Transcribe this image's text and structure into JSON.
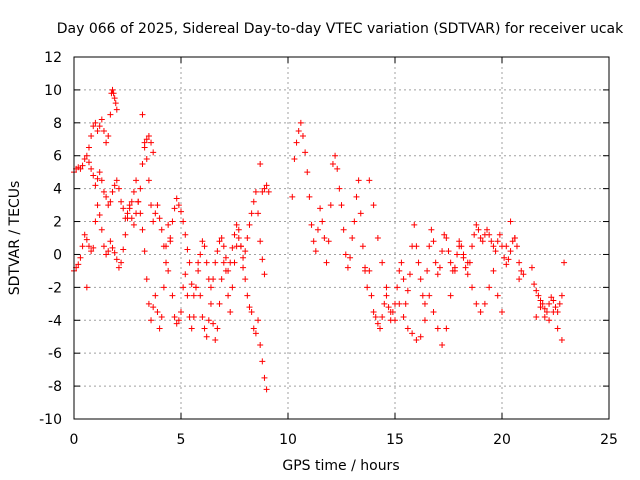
{
  "chart_data": {
    "type": "scatter",
    "title": "Day 066 of 2025, Sidereal Day-to-day VTEC variation (SDTVAR) for receiver ucak",
    "xlabel": "GPS time / hours",
    "ylabel": "SDTVAR / TECUs",
    "xlim": [
      0,
      25
    ],
    "ylim": [
      -10,
      12
    ],
    "xticks": [
      0,
      5,
      10,
      15,
      20,
      25
    ],
    "yticks": [
      -10,
      -8,
      -6,
      -4,
      -2,
      0,
      2,
      4,
      6,
      8,
      10,
      12
    ],
    "grid": true,
    "marker": "+",
    "color": "#ff0000",
    "series": [
      {
        "name": "SDTVAR",
        "x": [
          0.0,
          0.1,
          0.2,
          0.3,
          0.4,
          0.5,
          0.6,
          0.7,
          0.8,
          0.9,
          1.0,
          1.1,
          1.2,
          1.3,
          1.4,
          1.5,
          1.6,
          1.7,
          1.8,
          1.9,
          2.0,
          2.1,
          2.2,
          2.3,
          2.4,
          2.5,
          2.6,
          2.7,
          2.8,
          2.9,
          3.0,
          3.1,
          3.2,
          3.3,
          3.4,
          3.5,
          3.6,
          3.7,
          3.8,
          3.9,
          4.0,
          4.1,
          4.2,
          4.3,
          4.4,
          4.5,
          4.6,
          4.7,
          4.8,
          4.9,
          5.0,
          5.1,
          5.2,
          5.3,
          5.4,
          5.5,
          5.6,
          5.7,
          5.8,
          5.9,
          6.0,
          6.1,
          6.2,
          6.3,
          6.4,
          6.5,
          6.6,
          6.7,
          6.8,
          6.9,
          7.0,
          7.1,
          7.2,
          7.3,
          7.4,
          7.5,
          7.6,
          7.7,
          7.8,
          7.9,
          8.0,
          8.1,
          8.2,
          8.3,
          8.4,
          8.5,
          8.6,
          8.7,
          8.8,
          8.9,
          9.0,
          0.0,
          0.1,
          0.2,
          0.3,
          0.4,
          0.5,
          0.6,
          0.7,
          0.8,
          0.9,
          1.0,
          1.1,
          1.2,
          1.3,
          1.4,
          1.5,
          1.6,
          1.7,
          1.8,
          1.9,
          2.0,
          2.1,
          2.2,
          2.3,
          2.4,
          2.5,
          2.6,
          2.7,
          2.8,
          2.9,
          3.0,
          3.1,
          3.2,
          3.3,
          3.4,
          3.5,
          3.6,
          3.7,
          3.8,
          3.9,
          4.0,
          4.1,
          4.2,
          4.3,
          4.4,
          4.5,
          4.6,
          4.7,
          4.8,
          4.9,
          5.0,
          5.1,
          5.2,
          5.3,
          5.4,
          5.5,
          5.6,
          5.7,
          5.8,
          5.9,
          6.0,
          6.1,
          6.2,
          6.3,
          6.4,
          6.5,
          6.6,
          6.7,
          6.8,
          6.9,
          7.0,
          7.1,
          7.2,
          7.3,
          7.4,
          7.5,
          7.6,
          7.7,
          7.8,
          7.9,
          8.0,
          8.1,
          8.2,
          8.3,
          8.4,
          8.5,
          8.6,
          8.7,
          8.8,
          8.9,
          0.6,
          0.7,
          0.8,
          0.9,
          1.0,
          1.1,
          1.2,
          1.3,
          1.4,
          1.5,
          1.6,
          1.7,
          1.75,
          1.8,
          1.85,
          1.9,
          1.95,
          2.0,
          3.2,
          3.3,
          3.4,
          3.5,
          3.6,
          3.7,
          8.7,
          8.8,
          8.9,
          9.0,
          9.1,
          10.2,
          10.3,
          10.4,
          10.5,
          10.6,
          10.7,
          10.8,
          10.9,
          11.0,
          11.1,
          11.2,
          11.3,
          11.4,
          11.5,
          11.6,
          11.7,
          11.8,
          11.9,
          12.0,
          12.1,
          12.2,
          12.3,
          12.4,
          12.5,
          12.6,
          12.7,
          12.8,
          12.9,
          13.0,
          13.1,
          13.2,
          13.3,
          13.4,
          13.5,
          13.6,
          13.7,
          13.8,
          13.9,
          14.0,
          14.1,
          14.2,
          14.3,
          14.4,
          14.5,
          14.6,
          14.7,
          14.8,
          14.9,
          15.0,
          15.1,
          15.2,
          15.3,
          15.4,
          15.5,
          15.6,
          15.7,
          15.8,
          15.9,
          16.0,
          16.1,
          16.2,
          16.3,
          16.4,
          16.5,
          16.6,
          16.7,
          16.8,
          16.9,
          17.0,
          17.1,
          17.2,
          17.3,
          17.4,
          17.5,
          17.6,
          17.7,
          17.8,
          17.9,
          18.0,
          18.1,
          18.2,
          18.3,
          18.4,
          18.5,
          18.6,
          18.7,
          18.8,
          18.9,
          19.0,
          19.1,
          19.2,
          19.3,
          19.4,
          19.5,
          19.6,
          19.7,
          19.8,
          19.9,
          20.0,
          20.1,
          20.2,
          20.3,
          20.4,
          20.5,
          20.6,
          20.7,
          20.8,
          20.9,
          21.0,
          13.6,
          13.8,
          14.0,
          14.2,
          14.4,
          14.6,
          14.8,
          15.0,
          15.2,
          15.4,
          15.6,
          15.8,
          16.0,
          16.2,
          16.4,
          16.6,
          16.8,
          17.0,
          17.2,
          17.4,
          17.6,
          17.8,
          18.0,
          18.2,
          18.4,
          18.6,
          18.8,
          19.0,
          19.2,
          19.4,
          19.6,
          19.8,
          20.0,
          20.2,
          20.4,
          20.6,
          20.8,
          21.4,
          21.5,
          21.6,
          21.7,
          21.8,
          21.9,
          22.0,
          22.1,
          22.2,
          22.3,
          22.4,
          22.5,
          22.6,
          22.7,
          22.8,
          22.9,
          21.6,
          21.8,
          22.0,
          22.2,
          22.4,
          22.6,
          22.8
        ],
        "y": [
          -1.0,
          -0.8,
          -0.6,
          -0.2,
          0.5,
          1.2,
          0.9,
          0.5,
          0.2,
          0.4,
          2.0,
          3.0,
          2.4,
          1.5,
          0.5,
          0.0,
          0.2,
          0.8,
          0.4,
          0.1,
          -0.3,
          -0.8,
          -0.5,
          0.3,
          1.2,
          2.2,
          2.8,
          3.2,
          3.8,
          4.5,
          3.2,
          2.5,
          1.5,
          0.2,
          -1.5,
          -3.0,
          -4.0,
          -3.2,
          -2.5,
          -3.5,
          -4.5,
          -3.8,
          -2.0,
          0.5,
          1.8,
          1.0,
          -2.5,
          -3.8,
          -4.2,
          -4.0,
          -3.5,
          -2.0,
          -1.2,
          -2.5,
          -3.8,
          -4.5,
          -3.8,
          -2.0,
          -0.5,
          -2.5,
          -3.8,
          -4.5,
          -5.0,
          -4.0,
          -3.0,
          -4.2,
          -5.2,
          -4.5,
          -3.0,
          -1.5,
          -0.5,
          -1.0,
          -2.5,
          -3.5,
          -2.0,
          -0.5,
          0.5,
          1.0,
          0.5,
          -0.8,
          -1.5,
          -2.5,
          -3.2,
          -3.5,
          -4.5,
          -4.8,
          -4.0,
          -5.5,
          -6.5,
          -7.5,
          -8.2,
          5.0,
          5.2,
          5.3,
          5.2,
          5.4,
          5.8,
          6.0,
          5.6,
          5.2,
          4.8,
          4.2,
          4.6,
          5.0,
          4.5,
          3.8,
          3.5,
          3.0,
          3.2,
          3.8,
          4.2,
          4.5,
          4.0,
          3.2,
          2.8,
          2.2,
          2.5,
          3.0,
          2.2,
          1.8,
          2.5,
          3.2,
          4.0,
          5.5,
          6.8,
          5.8,
          4.5,
          3.0,
          2.0,
          2.5,
          3.0,
          2.2,
          1.5,
          0.5,
          -0.5,
          -1.0,
          0.8,
          2.0,
          2.8,
          3.4,
          3.0,
          2.6,
          2.0,
          1.2,
          0.3,
          -0.5,
          -1.8,
          -2.5,
          -2.0,
          -1.0,
          0.0,
          0.8,
          0.5,
          -0.5,
          -1.5,
          -2.0,
          -1.5,
          -0.5,
          0.2,
          0.8,
          1.0,
          0.5,
          -0.2,
          -1.0,
          -0.5,
          0.4,
          1.2,
          1.8,
          1.5,
          0.5,
          -0.2,
          0.2,
          1.0,
          1.8,
          2.5,
          3.2,
          3.8,
          2.5,
          0.8,
          -0.3,
          -1.2,
          -2.0,
          6.5,
          7.2,
          7.8,
          8.0,
          7.5,
          7.8,
          8.2,
          7.5,
          6.8,
          7.2,
          8.5,
          9.8,
          10.0,
          9.8,
          9.5,
          9.2,
          8.8,
          8.5,
          6.5,
          7.0,
          7.2,
          6.8,
          6.2,
          5.5,
          3.8,
          4.0,
          4.2,
          3.8,
          3.5,
          5.8,
          6.8,
          7.5,
          8.0,
          7.2,
          6.2,
          5.0,
          3.5,
          1.8,
          0.8,
          0.2,
          1.5,
          2.8,
          2.0,
          1.0,
          -0.5,
          0.8,
          3.0,
          5.5,
          6.0,
          5.2,
          4.0,
          3.0,
          1.5,
          0.0,
          -0.8,
          -0.2,
          1.0,
          2.0,
          3.5,
          4.5,
          2.5,
          0.5,
          -1.0,
          -2.0,
          -1.0,
          -2.5,
          -3.5,
          -3.8,
          -4.2,
          -4.5,
          -3.8,
          -3.0,
          -2.5,
          -3.2,
          -4.0,
          -3.5,
          -3.0,
          -2.0,
          -1.0,
          -0.5,
          -1.5,
          -3.0,
          -2.2,
          -1.2,
          0.5,
          1.8,
          0.5,
          -0.5,
          -1.5,
          -2.5,
          -3.0,
          -1.0,
          0.5,
          1.5,
          0.8,
          -0.5,
          -1.2,
          -0.8,
          0.2,
          1.2,
          1.0,
          0.2,
          -0.5,
          -1.0,
          -0.8,
          0.0,
          0.8,
          0.5,
          -0.2,
          -0.8,
          -1.2,
          -0.5,
          0.5,
          1.2,
          1.8,
          1.5,
          1.0,
          0.8,
          1.2,
          1.5,
          1.2,
          0.8,
          0.5,
          0.2,
          0.8,
          1.2,
          0.5,
          -0.2,
          -0.6,
          -0.3,
          0.2,
          0.8,
          1.0,
          0.5,
          -0.5,
          -1.0,
          -1.2,
          -0.8,
          4.5,
          3.0,
          1.0,
          -0.5,
          -2.0,
          -3.5,
          -4.0,
          -3.0,
          -3.8,
          -4.5,
          -4.8,
          -5.2,
          -5.0,
          -4.0,
          -2.5,
          -3.5,
          -4.5,
          -5.5,
          -4.5,
          -2.5,
          -1.0,
          0.5,
          0.0,
          -0.5,
          -2.0,
          -3.0,
          -3.5,
          -3.0,
          -2.0,
          -1.0,
          -2.5,
          -3.5,
          0.5,
          2.0,
          1.0,
          -1.5,
          -0.8,
          -1.8,
          -2.2,
          -2.5,
          -2.8,
          -3.0,
          -3.3,
          -3.5,
          -3.0,
          -2.6,
          -2.8,
          -3.2,
          -3.5,
          -3.0,
          -2.5,
          -0.5,
          -3.8,
          -3.2,
          -3.8,
          -4.0,
          -3.5,
          -4.5,
          -5.2
        ]
      }
    ]
  }
}
